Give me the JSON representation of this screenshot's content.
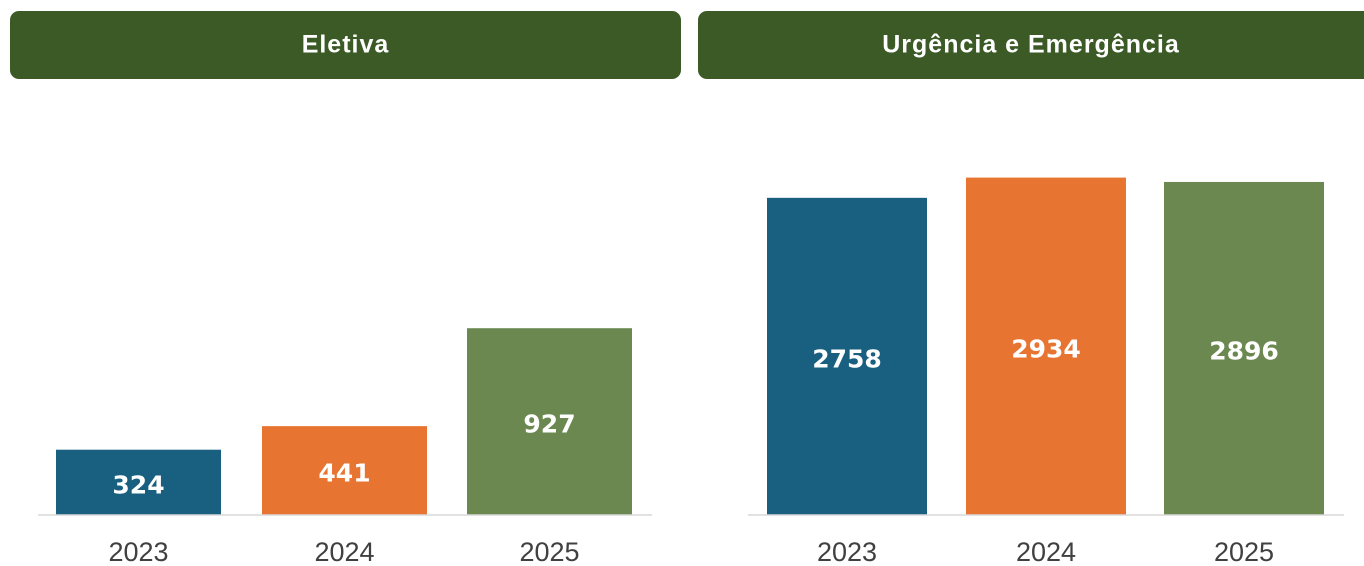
{
  "chart_data": [
    {
      "type": "bar",
      "title": "Eletiva",
      "categories": [
        "2023",
        "2024",
        "2025"
      ],
      "values": [
        324,
        441,
        927
      ],
      "colors": [
        "#185f80",
        "#e87431",
        "#6a8850"
      ],
      "ylim": [
        0,
        2000
      ]
    },
    {
      "type": "bar",
      "title": "Urgência e Emergência",
      "categories": [
        "2023",
        "2024",
        "2025"
      ],
      "values": [
        2758,
        2934,
        2896
      ],
      "colors": [
        "#185f80",
        "#e87431",
        "#6a8850"
      ],
      "ylim": [
        0,
        3000
      ]
    }
  ]
}
